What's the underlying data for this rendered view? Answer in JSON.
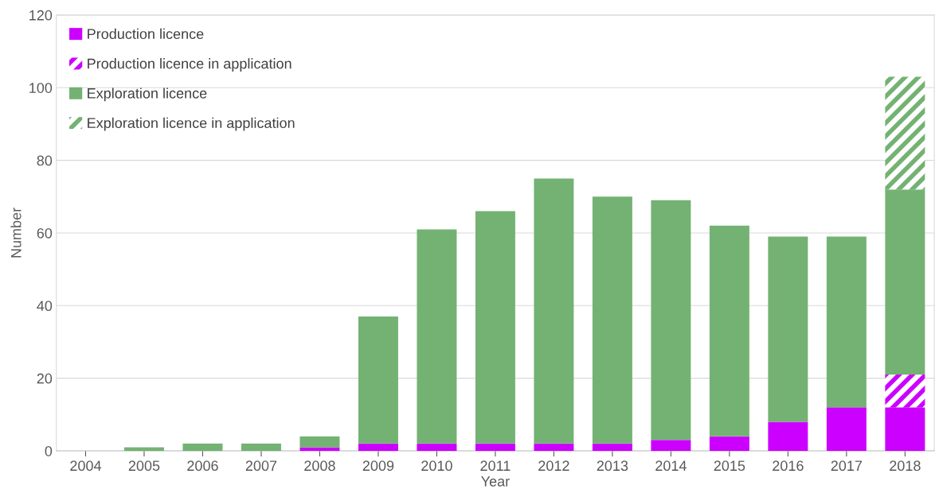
{
  "chart_data": {
    "type": "bar",
    "stacked": true,
    "xlabel": "Year",
    "ylabel": "Number",
    "categories": [
      "2004",
      "2005",
      "2006",
      "2007",
      "2008",
      "2009",
      "2010",
      "2011",
      "2012",
      "2013",
      "2014",
      "2015",
      "2016",
      "2017",
      "2018"
    ],
    "series": [
      {
        "name": "Production licence",
        "color": "#cc00ff",
        "values": [
          0,
          0,
          0,
          0,
          1,
          2,
          2,
          2,
          2,
          2,
          3,
          4,
          8,
          12,
          12
        ]
      },
      {
        "name": "Production licence in application",
        "color": "#cc00ff",
        "values": [
          0,
          0,
          0,
          0,
          0,
          0,
          0,
          0,
          0,
          0,
          0,
          0,
          0,
          0,
          9
        ]
      },
      {
        "name": "Exploration licence",
        "color": "#73b273",
        "values": [
          0,
          1,
          2,
          2,
          3,
          35,
          59,
          64,
          73,
          68,
          66,
          58,
          51,
          47,
          51
        ]
      },
      {
        "name": "Exploration licence in application",
        "color": "#73b273",
        "values": [
          0,
          0,
          0,
          0,
          0,
          0,
          0,
          0,
          0,
          0,
          0,
          0,
          0,
          0,
          31
        ]
      }
    ],
    "ylim": [
      0,
      120
    ],
    "yticks": [
      0,
      20,
      40,
      60,
      80,
      100,
      120
    ],
    "grid": "y",
    "legend": "top left"
  }
}
